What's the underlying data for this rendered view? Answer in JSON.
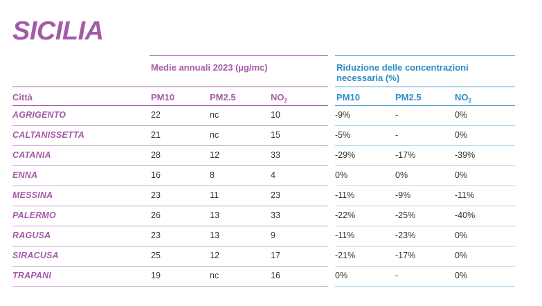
{
  "title": "SICILIA",
  "headers": {
    "group_means": "Medie annuali 2023 (µg/mc)",
    "group_reduction_line1": "Riduzione delle concentrazioni",
    "group_reduction_line2": "necessaria (%)",
    "city": "Città",
    "pm10": "PM10",
    "pm25": "PM2.5",
    "no2_base": "NO",
    "no2_sub": "2",
    "red_pm10": "PM10",
    "red_pm25": "PM2.5",
    "red_no2_base": "NO",
    "red_no2_sub": "2"
  },
  "rows": [
    {
      "city": "AGRIGENTO",
      "pm10": "22",
      "pm25": "nc",
      "no2": "10",
      "r_pm10": "-9%",
      "r_pm25": "-",
      "r_no2": "0%"
    },
    {
      "city": "CALTANISSETTA",
      "pm10": "21",
      "pm25": "nc",
      "no2": "15",
      "r_pm10": "-5%",
      "r_pm25": "-",
      "r_no2": "0%"
    },
    {
      "city": "CATANIA",
      "pm10": "28",
      "pm25": "12",
      "no2": "33",
      "r_pm10": "-29%",
      "r_pm25": "-17%",
      "r_no2": "-39%"
    },
    {
      "city": "ENNA",
      "pm10": "16",
      "pm25": "8",
      "no2": "4",
      "r_pm10": "0%",
      "r_pm25": "0%",
      "r_no2": "0%"
    },
    {
      "city": "MESSINA",
      "pm10": "23",
      "pm25": "11",
      "no2": "23",
      "r_pm10": "-11%",
      "r_pm25": "-9%",
      "r_no2": "-11%"
    },
    {
      "city": "PALERMO",
      "pm10": "26",
      "pm25": "13",
      "no2": "33",
      "r_pm10": "-22%",
      "r_pm25": "-25%",
      "r_no2": "-40%"
    },
    {
      "city": "RAGUSA",
      "pm10": "23",
      "pm25": "13",
      "no2": "9",
      "r_pm10": "-11%",
      "r_pm25": "-23%",
      "r_no2": "0%"
    },
    {
      "city": "SIRACUSA",
      "pm10": "25",
      "pm25": "12",
      "no2": "17",
      "r_pm10": "-21%",
      "r_pm25": "-17%",
      "r_no2": "0%"
    },
    {
      "city": "TRAPANI",
      "pm10": "19",
      "pm25": "nc",
      "no2": "16",
      "r_pm10": "0%",
      "r_pm25": "-",
      "r_no2": "0%"
    }
  ]
}
